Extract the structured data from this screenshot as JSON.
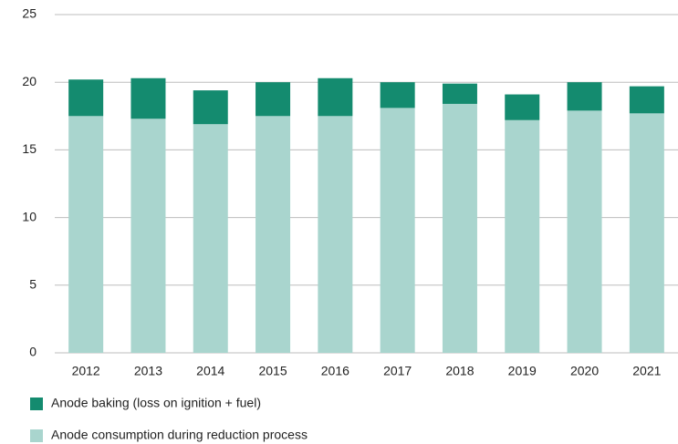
{
  "chart_data": {
    "type": "stacked_bar",
    "categories": [
      "2012",
      "2013",
      "2014",
      "2015",
      "2016",
      "2017",
      "2018",
      "2019",
      "2020",
      "2021"
    ],
    "series": [
      {
        "name": "Anode baking (loss on ignition + fuel)",
        "color": "#148b6f",
        "values": [
          2.7,
          3.0,
          2.5,
          2.5,
          2.8,
          1.9,
          1.5,
          1.9,
          2.1,
          2.0
        ]
      },
      {
        "name": "Anode consumption during reduction process",
        "color": "#a9d5ce",
        "values": [
          17.5,
          17.3,
          16.9,
          17.5,
          17.5,
          18.1,
          18.4,
          17.2,
          17.9,
          17.7
        ]
      }
    ],
    "ylim": [
      0,
      25
    ],
    "yticks": [
      0,
      5,
      10,
      15,
      20,
      25
    ],
    "grid": true
  }
}
